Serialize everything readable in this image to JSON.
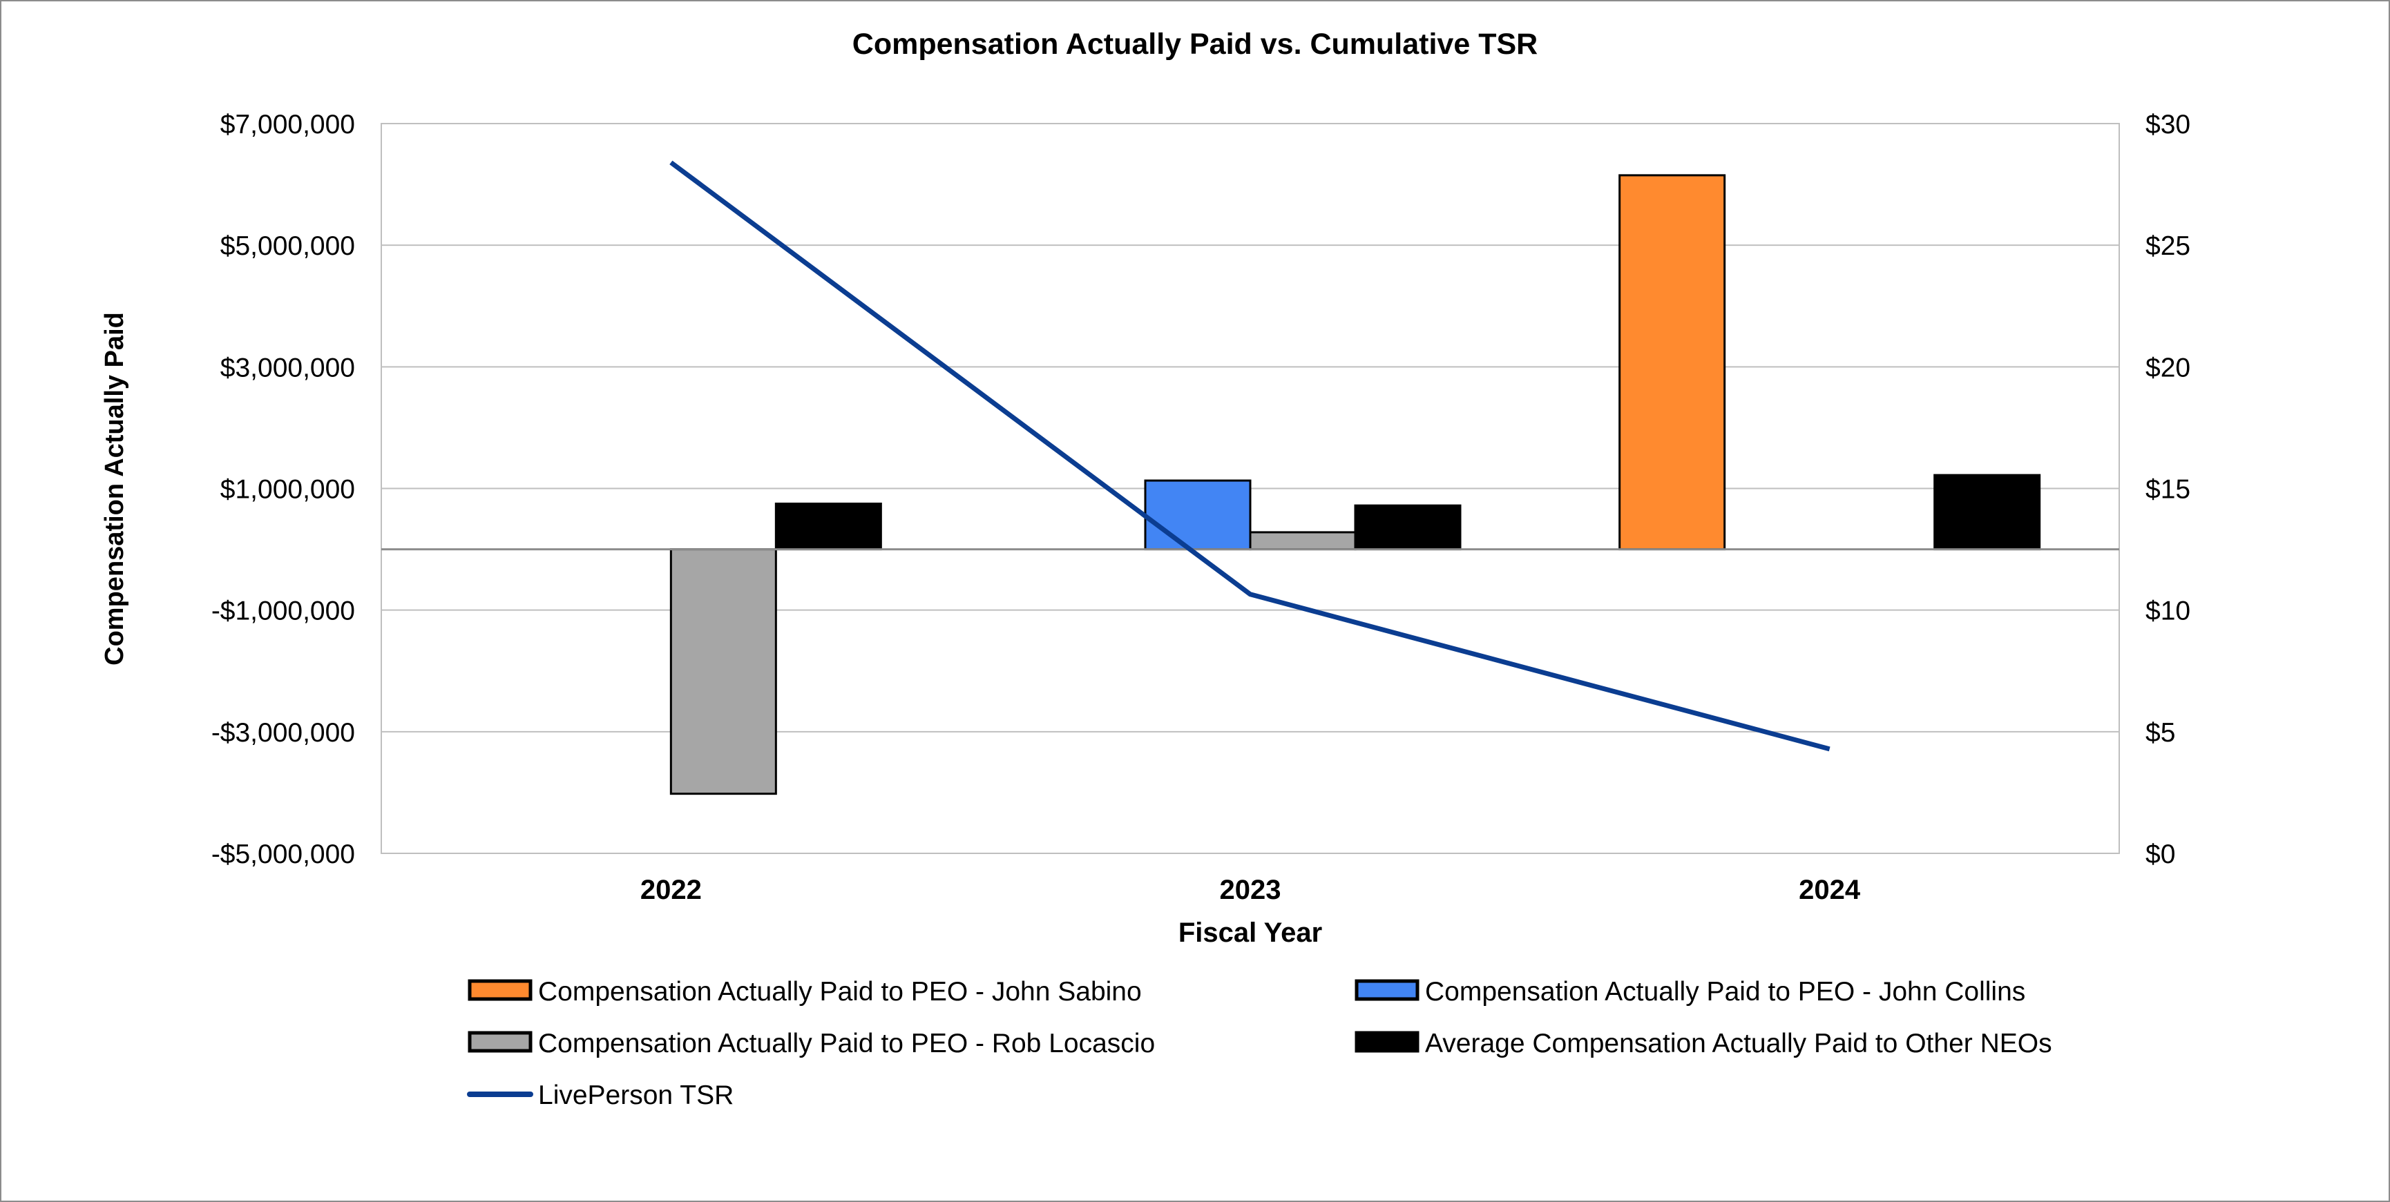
{
  "chart_data": {
    "type": "bar",
    "title": "Compensation Actually Paid vs. Cumulative TSR",
    "xlabel": "Fiscal Year",
    "ylabel": "Compensation Actually Paid",
    "y2label": "",
    "categories": [
      "2022",
      "2023",
      "2024"
    ],
    "ylim": [
      -5000000,
      7000000
    ],
    "yticks": [
      -5000000,
      -3000000,
      -1000000,
      1000000,
      3000000,
      5000000,
      7000000
    ],
    "ytick_labels": [
      "-$5,000,000",
      "-$3,000,000",
      "-$1,000,000",
      "$1,000,000",
      "$3,000,000",
      "$5,000,000",
      "$7,000,000"
    ],
    "y2lim": [
      0,
      30
    ],
    "y2ticks": [
      0,
      5,
      10,
      15,
      20,
      25,
      30
    ],
    "y2tick_labels": [
      "$0",
      "$5",
      "$10",
      "$15",
      "$20",
      "$25",
      "$30"
    ],
    "grid": true,
    "legend_position": "bottom",
    "series": [
      {
        "name": "Compensation Actually Paid to PEO - John Sabino",
        "type": "bar",
        "color": "#ff8a2f",
        "values": [
          null,
          null,
          6150000
        ]
      },
      {
        "name": "Compensation Actually Paid to PEO - John Collins",
        "type": "bar",
        "color": "#4285f4",
        "values": [
          null,
          1130000,
          null
        ]
      },
      {
        "name": "Compensation Actually Paid to PEO - Rob Locascio",
        "type": "bar",
        "color": "#a6a6a6",
        "values": [
          -4020000,
          280000,
          null
        ]
      },
      {
        "name": "Average Compensation Actually Paid to Other NEOs",
        "type": "bar",
        "color": "#000000",
        "values": [
          750000,
          720000,
          1220000
        ]
      },
      {
        "name": "LivePerson TSR",
        "type": "line",
        "axis": "right",
        "color": "#0b3d91",
        "values": [
          28.4,
          10.65,
          4.29
        ]
      }
    ]
  }
}
